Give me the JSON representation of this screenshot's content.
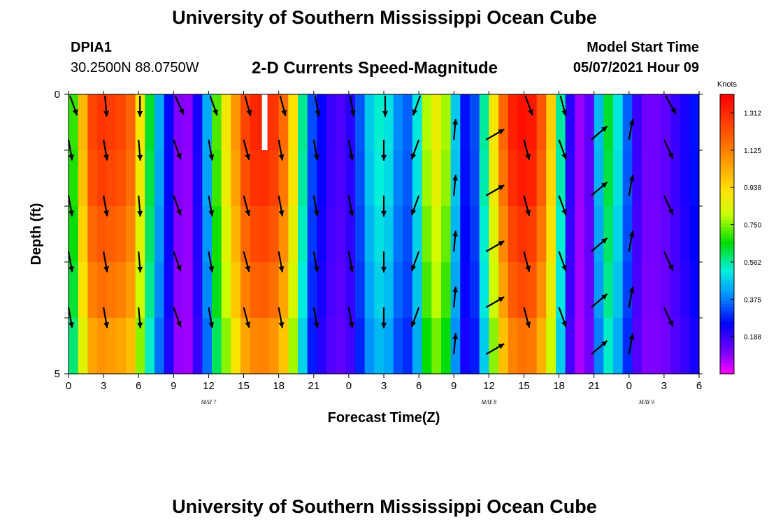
{
  "header": {
    "title_top": "University of Southern Mississippi Ocean Cube",
    "title_bottom": "University of Southern Mississippi Ocean Cube",
    "station": "DPIA1",
    "coords": "30.2500N  88.0750W",
    "chart_title": "2-D Currents Speed-Magnitude",
    "model_start_label": "Model Start Time",
    "model_start_value": "05/07/2021 Hour 09"
  },
  "chart_data": {
    "type": "heatmap",
    "title": "2-D Currents Speed-Magnitude",
    "xlabel": "Forecast Time(Z)",
    "ylabel": "Depth (ft)",
    "ylim": [
      0,
      5
    ],
    "y_ticks": [
      "0",
      "5"
    ],
    "x_tick_labels": [
      "0",
      "3",
      "6",
      "9",
      "12",
      "15",
      "18",
      "21",
      "0",
      "3",
      "6",
      "9",
      "12",
      "15",
      "18",
      "21",
      "0",
      "3",
      "6"
    ],
    "date_labels": [
      {
        "label": "MAY 7",
        "at_tick": 4
      },
      {
        "label": "MAY 8",
        "at_tick": 12
      },
      {
        "label": "MAY 9",
        "at_tick": 16.5
      }
    ],
    "colorbar": {
      "unit": "Knots",
      "tick_labels": [
        "1.312",
        "1.125",
        "0.938",
        "0.750",
        "0.562",
        "0.375",
        "0.188"
      ],
      "min": 0.0,
      "max": 1.406
    },
    "depth_levels": 5,
    "speed_columns_knots": [
      0.68,
      0.99,
      1.22,
      1.26,
      1.24,
      1.22,
      1.16,
      0.88,
      0.62,
      0.42,
      0.25,
      0.1,
      0.09,
      0.22,
      0.42,
      0.7,
      0.88,
      1.06,
      1.22,
      1.29,
      1.3,
      1.26,
      1.14,
      0.9,
      0.56,
      0.32,
      0.24,
      0.18,
      0.16,
      0.2,
      0.33,
      0.46,
      0.52,
      0.49,
      0.38,
      0.34,
      0.5,
      0.77,
      0.86,
      0.76,
      0.46,
      0.26,
      0.32,
      0.55,
      0.88,
      1.15,
      1.3,
      1.34,
      1.32,
      1.19,
      0.94,
      0.55,
      0.2,
      0.08,
      0.14,
      0.44,
      0.62,
      0.5,
      0.34,
      0.18,
      0.12,
      0.12,
      0.14,
      0.18,
      0.22,
      0.26
    ],
    "depth_scale": [
      1.02,
      1.0,
      0.96,
      0.92,
      0.86
    ],
    "arrows": {
      "times": [
        0,
        3,
        6,
        9,
        12,
        15,
        18,
        21,
        24,
        27,
        30,
        33,
        36,
        39,
        42,
        45,
        48,
        51
      ],
      "directions_deg_by_time": [
        170,
        170,
        175,
        160,
        170,
        165,
        170,
        170,
        170,
        180,
        200,
        5,
        60,
        165,
        160,
        50,
        10,
        155
      ],
      "surface_directions_deg": [
        160,
        175,
        180,
        155,
        160,
        165,
        165,
        170,
        170,
        180,
        200,
        null,
        null,
        160,
        165,
        null,
        null,
        150
      ],
      "surface_row_time_offset": -1
    },
    "missing_cell": {
      "time": 16.8,
      "depth_top": 0,
      "depth_bottom": 1
    }
  }
}
